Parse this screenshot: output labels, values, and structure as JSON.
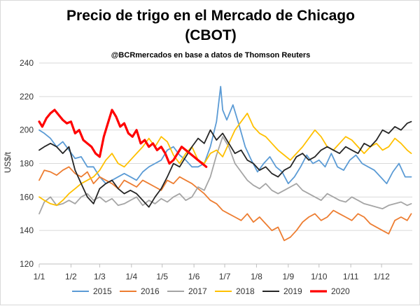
{
  "chart_data": {
    "type": "line",
    "title_line1": "Precio de trigo en el Mercado de Chicago",
    "title_line2": "(CBOT)",
    "subtitle": "@BCRmercados en base a datos de Thomson Reuters",
    "ylabel": "US$/t",
    "ylim": [
      120,
      240
    ],
    "yticks": [
      "120",
      "140",
      "160",
      "180",
      "200",
      "220",
      "240"
    ],
    "xticks": [
      "1/1",
      "1/2",
      "1/3",
      "1/4",
      "1/5",
      "1/6",
      "1/7",
      "1/8",
      "1/9",
      "1/10",
      "1/11",
      "1/12"
    ],
    "grid": "horizontal",
    "legend_position": "bottom",
    "colors": {
      "2015": "#5b9bd5",
      "2016": "#ed7d31",
      "2017": "#a5a5a5",
      "2018": "#ffc000",
      "2019": "#262626",
      "2020": "#ff0000"
    },
    "series": [
      {
        "name": "2015",
        "x": [
          1,
          6,
          12,
          18,
          24,
          30,
          36,
          42,
          48,
          54,
          60,
          66,
          72,
          78,
          84,
          90,
          96,
          102,
          108,
          114,
          120,
          126,
          132,
          138,
          144,
          150,
          156,
          162,
          168,
          174,
          178,
          180,
          184,
          190,
          196,
          202,
          208,
          214,
          220,
          226,
          232,
          238,
          244,
          250,
          256,
          262,
          268,
          274,
          280,
          286,
          292,
          298,
          304,
          310,
          316,
          322,
          328,
          334,
          340,
          346,
          352,
          358,
          364
        ],
        "values": [
          200,
          198,
          195,
          190,
          193,
          188,
          183,
          184,
          178,
          178,
          172,
          168,
          170,
          172,
          174,
          172,
          170,
          175,
          178,
          180,
          182,
          188,
          190,
          185,
          182,
          178,
          178,
          180,
          190,
          205,
          226,
          212,
          206,
          215,
          203,
          190,
          182,
          175,
          180,
          184,
          178,
          175,
          168,
          172,
          178,
          185,
          180,
          182,
          178,
          186,
          178,
          176,
          182,
          185,
          180,
          178,
          176,
          172,
          168,
          175,
          180,
          172,
          172
        ]
      },
      {
        "name": "2016",
        "x": [
          1,
          6,
          12,
          18,
          24,
          30,
          36,
          42,
          48,
          54,
          60,
          66,
          72,
          78,
          84,
          90,
          96,
          102,
          108,
          114,
          120,
          126,
          132,
          138,
          144,
          150,
          156,
          162,
          168,
          174,
          180,
          186,
          192,
          198,
          204,
          210,
          216,
          222,
          228,
          234,
          240,
          246,
          252,
          258,
          264,
          270,
          276,
          282,
          288,
          294,
          300,
          306,
          312,
          318,
          324,
          330,
          336,
          342,
          348,
          354,
          360,
          364
        ],
        "values": [
          170,
          176,
          175,
          173,
          176,
          178,
          174,
          172,
          175,
          168,
          172,
          170,
          168,
          165,
          170,
          168,
          166,
          170,
          168,
          166,
          164,
          170,
          168,
          172,
          170,
          168,
          165,
          162,
          158,
          156,
          152,
          150,
          148,
          146,
          150,
          145,
          148,
          144,
          140,
          142,
          134,
          136,
          140,
          145,
          148,
          150,
          146,
          148,
          152,
          150,
          148,
          146,
          150,
          148,
          144,
          142,
          140,
          138,
          146,
          148,
          146,
          150
        ]
      },
      {
        "name": "2017",
        "x": [
          1,
          6,
          12,
          18,
          24,
          30,
          36,
          42,
          48,
          54,
          60,
          66,
          72,
          78,
          84,
          90,
          96,
          102,
          108,
          114,
          120,
          126,
          132,
          138,
          144,
          150,
          156,
          162,
          168,
          174,
          180,
          186,
          192,
          198,
          204,
          210,
          216,
          222,
          228,
          234,
          240,
          246,
          252,
          258,
          264,
          270,
          276,
          282,
          288,
          294,
          300,
          306,
          312,
          318,
          324,
          330,
          336,
          342,
          348,
          354,
          360,
          364
        ],
        "values": [
          150,
          157,
          160,
          155,
          156,
          158,
          156,
          160,
          162,
          158,
          160,
          157,
          159,
          155,
          156,
          158,
          160,
          155,
          158,
          156,
          159,
          157,
          160,
          162,
          158,
          160,
          166,
          164,
          172,
          185,
          196,
          190,
          180,
          175,
          170,
          167,
          165,
          168,
          164,
          162,
          164,
          166,
          168,
          164,
          162,
          160,
          158,
          162,
          160,
          158,
          157,
          160,
          158,
          156,
          155,
          154,
          153,
          155,
          156,
          157,
          155,
          156
        ]
      },
      {
        "name": "2018",
        "x": [
          1,
          6,
          12,
          18,
          24,
          30,
          36,
          42,
          48,
          54,
          60,
          66,
          72,
          78,
          84,
          90,
          96,
          102,
          108,
          114,
          120,
          126,
          132,
          138,
          144,
          150,
          156,
          162,
          168,
          174,
          180,
          186,
          192,
          198,
          204,
          210,
          216,
          222,
          228,
          234,
          240,
          246,
          252,
          258,
          264,
          270,
          276,
          282,
          288,
          294,
          300,
          306,
          312,
          318,
          324,
          330,
          336,
          342,
          348,
          354,
          360,
          364
        ],
        "values": [
          160,
          158,
          156,
          155,
          158,
          162,
          165,
          168,
          170,
          172,
          176,
          182,
          186,
          180,
          178,
          182,
          186,
          190,
          195,
          190,
          196,
          193,
          185,
          180,
          186,
          190,
          182,
          180,
          186,
          188,
          184,
          192,
          200,
          205,
          210,
          202,
          198,
          196,
          192,
          188,
          185,
          182,
          186,
          190,
          195,
          200,
          196,
          190,
          188,
          192,
          196,
          194,
          190,
          186,
          190,
          192,
          188,
          190,
          195,
          192,
          188,
          186
        ]
      },
      {
        "name": "2019",
        "x": [
          1,
          6,
          12,
          18,
          24,
          30,
          36,
          42,
          48,
          54,
          60,
          66,
          72,
          78,
          84,
          90,
          96,
          102,
          108,
          114,
          120,
          126,
          132,
          138,
          144,
          150,
          156,
          162,
          168,
          174,
          180,
          186,
          192,
          198,
          204,
          210,
          216,
          222,
          228,
          234,
          240,
          246,
          252,
          258,
          264,
          270,
          276,
          282,
          288,
          294,
          300,
          306,
          312,
          318,
          324,
          330,
          336,
          342,
          348,
          354,
          360,
          364
        ],
        "values": [
          188,
          190,
          192,
          190,
          186,
          190,
          176,
          168,
          160,
          156,
          165,
          168,
          170,
          165,
          162,
          164,
          162,
          158,
          154,
          160,
          165,
          172,
          180,
          178,
          184,
          190,
          195,
          192,
          200,
          194,
          198,
          192,
          186,
          188,
          182,
          180,
          176,
          178,
          174,
          172,
          176,
          178,
          184,
          186,
          182,
          184,
          188,
          190,
          188,
          186,
          190,
          188,
          186,
          192,
          190,
          194,
          200,
          198,
          202,
          200,
          204,
          205
        ]
      },
      {
        "name": "2020",
        "x": [
          1,
          4,
          8,
          12,
          16,
          20,
          24,
          28,
          32,
          36,
          40,
          44,
          48,
          52,
          56,
          60,
          64,
          68,
          72,
          76,
          80,
          84,
          88,
          92,
          96,
          100,
          104,
          108,
          112,
          116,
          120,
          124,
          128,
          132,
          136,
          140,
          144,
          148,
          152,
          156,
          160,
          164
        ],
        "values": [
          205,
          202,
          207,
          210,
          212,
          209,
          206,
          204,
          205,
          198,
          200,
          194,
          192,
          190,
          186,
          184,
          196,
          204,
          212,
          208,
          202,
          204,
          198,
          196,
          200,
          192,
          194,
          190,
          192,
          188,
          190,
          186,
          180,
          182,
          186,
          190,
          188,
          186,
          184,
          182,
          180,
          178
        ]
      }
    ]
  }
}
